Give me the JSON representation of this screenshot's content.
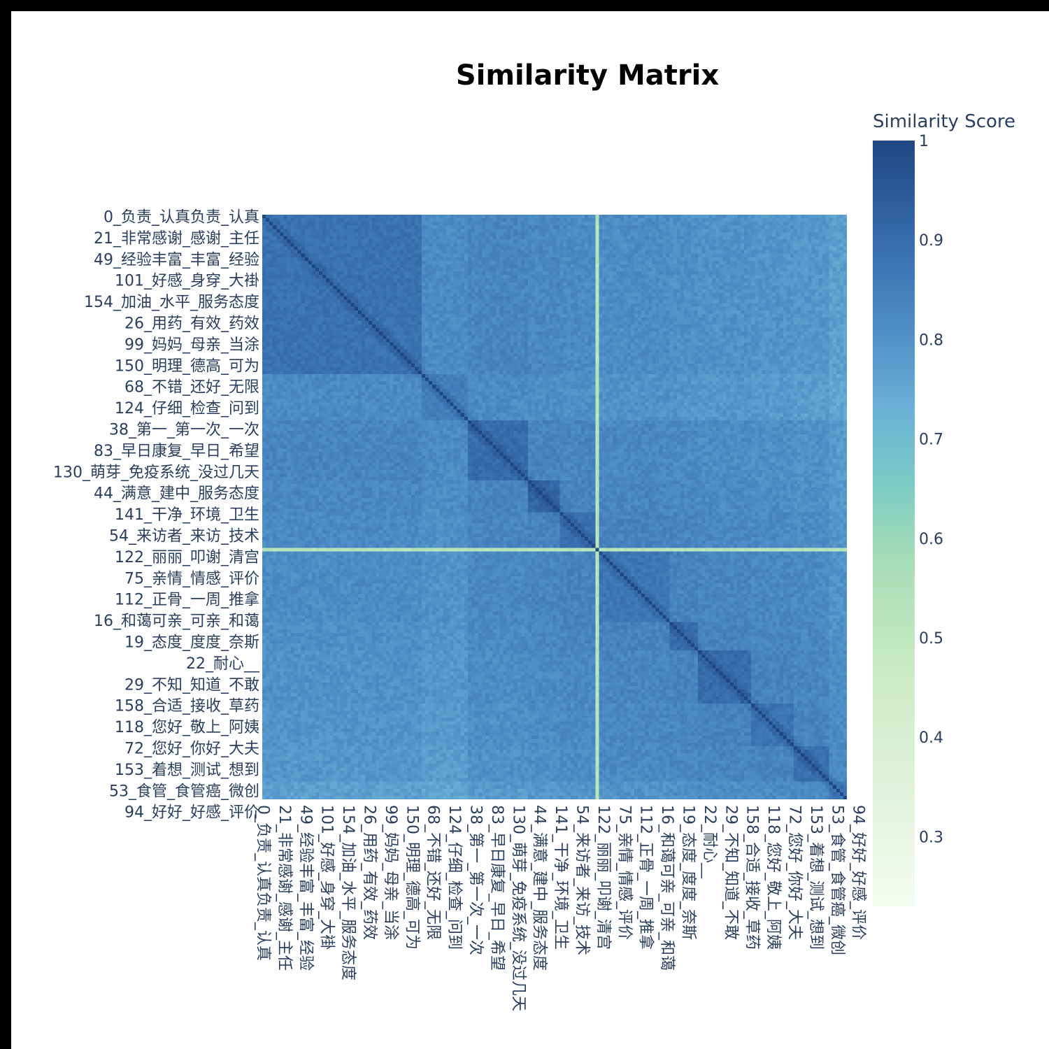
{
  "chart_data": {
    "type": "heatmap",
    "title": "Similarity Matrix",
    "colorbar": {
      "title": "Similarity Score",
      "range": [
        0.23,
        1.0
      ],
      "ticks": [
        1,
        0.9,
        0.8,
        0.7,
        0.6,
        0.5,
        0.4,
        0.3
      ],
      "tick_labels": [
        "1",
        "0.9",
        "0.8",
        "0.7",
        "0.6",
        "0.5",
        "0.4",
        "0.3"
      ],
      "colorscale": [
        [
          0.0,
          "#f7fcf0"
        ],
        [
          0.15,
          "#e0f3db"
        ],
        [
          0.3,
          "#ccebc5"
        ],
        [
          0.45,
          "#a8ddb5"
        ],
        [
          0.55,
          "#7bccc4"
        ],
        [
          0.65,
          "#6ab0d6"
        ],
        [
          0.75,
          "#4f8fc6"
        ],
        [
          0.85,
          "#3b72b3"
        ],
        [
          1.0,
          "#1f4784"
        ]
      ]
    },
    "matrix_size": 165,
    "labels": [
      "0_负责_认真负责_认真",
      "21_非常感谢_感谢_主任",
      "49_经验丰富_丰富_经验",
      "101_好感_身穿_大褂",
      "154_加油_水平_服务态度",
      "26_用药_有效_药效",
      "99_妈妈_母亲_当涂",
      "150_明理_德高_可为",
      "68_不错_还好_无限",
      "124_仔细_检查_问到",
      "38_第一_第一次_一次",
      "83_早日康复_早日_希望",
      "130_萌芽_免疫系统_没过几天",
      "44_满意_建中_服务态度",
      "141_干净_环境_卫生",
      "54_来访者_来访_技术",
      "122_丽丽_叩谢_清宫",
      "75_亲情_情感_评价",
      "112_正骨_一周_推拿",
      "16_和蔼可亲_可亲_和蔼",
      "19_态度_度度_奈斯",
      "22_耐心__",
      "29_不知_知道_不敢",
      "158_合适_接收_草药",
      "118_您好_敬上_阿姨",
      "72_您好_你好_大夫",
      "153_着想_测试_想到",
      "53_食管_食管癌_微创",
      "94_好好_好感_评价"
    ],
    "label_positions": [
      0,
      6,
      12,
      18,
      24,
      30,
      36,
      42,
      48,
      54,
      60,
      66,
      72,
      78,
      84,
      90,
      96,
      102,
      108,
      114,
      120,
      126,
      132,
      138,
      144,
      150,
      156,
      162,
      168
    ],
    "outlier_index": 94,
    "blocks": [
      {
        "start": 0,
        "end": 45,
        "base": 0.885
      },
      {
        "start": 45,
        "end": 58,
        "base": 0.855
      },
      {
        "start": 58,
        "end": 75,
        "base": 0.9
      },
      {
        "start": 75,
        "end": 84,
        "base": 0.915
      },
      {
        "start": 84,
        "end": 94,
        "base": 0.89
      },
      {
        "start": 95,
        "end": 115,
        "base": 0.875
      },
      {
        "start": 115,
        "end": 123,
        "base": 0.895
      },
      {
        "start": 123,
        "end": 138,
        "base": 0.9
      },
      {
        "start": 138,
        "end": 150,
        "base": 0.88
      },
      {
        "start": 150,
        "end": 160,
        "base": 0.89
      },
      {
        "start": 160,
        "end": 165,
        "base": 0.86
      }
    ],
    "between_block_value": 0.845
  }
}
